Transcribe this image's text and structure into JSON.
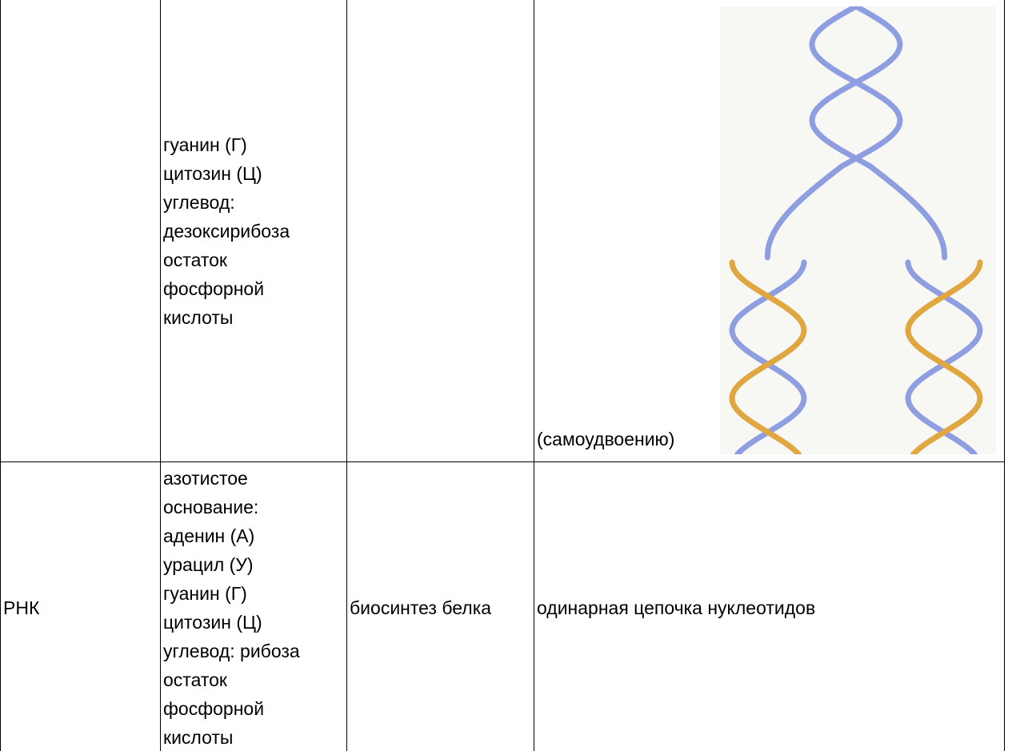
{
  "table": {
    "rows": [
      {
        "components": [
          "гуанин (Г)",
          "цитозин (Ц)",
          "углевод:",
          "дезоксирибоза",
          "остаток",
          "фосфорной",
          "кислоты"
        ],
        "caption": "(самоудвоению)"
      },
      {
        "name": "РНК",
        "components": [
          "азотистое",
          "основание:",
          "аденин (А)",
          "урацил (У)",
          "гуанин (Г)",
          "цитозин (Ц)",
          "углевод: рибоза",
          "остаток",
          "фосфорной",
          "кислоты"
        ],
        "function": "биосинтез белка",
        "structure": "одинарная цепочка нуклеотидов"
      }
    ]
  }
}
